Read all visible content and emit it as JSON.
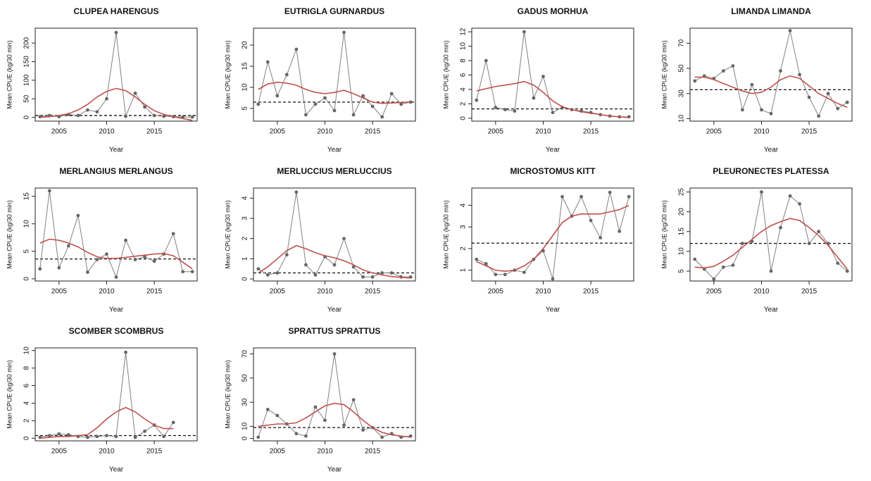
{
  "chart_data": [
    {
      "type": "line",
      "title": "CLUPEA HARENGUS",
      "xlabel": "Year",
      "ylabel": "Mean CPUE (kg/30 min)",
      "x": [
        2003,
        2004,
        2005,
        2006,
        2007,
        2008,
        2009,
        2010,
        2011,
        2012,
        2013,
        2014,
        2015,
        2016,
        2017,
        2018,
        2019
      ],
      "xlim": [
        2002.5,
        2019.5
      ],
      "xticks": [
        2005,
        2010,
        2015
      ],
      "ylim": [
        -10,
        240
      ],
      "yticks": [
        0,
        50,
        100,
        150,
        200
      ],
      "series": [
        {
          "color": "#808080",
          "markers": true,
          "values": [
            2,
            5,
            2,
            8,
            5,
            20,
            15,
            50,
            228,
            3,
            65,
            28,
            5,
            3,
            2,
            1,
            1
          ]
        },
        {
          "color": "#c0504d",
          "markers": false,
          "values": [
            0,
            2,
            5,
            10,
            20,
            35,
            55,
            70,
            78,
            72,
            55,
            35,
            18,
            8,
            2,
            -3,
            -8
          ]
        }
      ],
      "hline": 5
    },
    {
      "type": "line",
      "title": "EUTRIGLA GURNARDUS",
      "xlabel": "Year",
      "ylabel": "Mean CPUE (kg/30 min)",
      "x": [
        2003,
        2004,
        2005,
        2006,
        2007,
        2008,
        2009,
        2010,
        2011,
        2012,
        2013,
        2014,
        2015,
        2016,
        2017,
        2018,
        2019
      ],
      "xlim": [
        2002.5,
        2019.5
      ],
      "xticks": [
        2005,
        2010,
        2015
      ],
      "ylim": [
        2,
        24
      ],
      "yticks": [
        5,
        10,
        15,
        20
      ],
      "series": [
        {
          "color": "#808080",
          "markers": true,
          "values": [
            6,
            16,
            8,
            13,
            19,
            3.5,
            6,
            7.5,
            4.5,
            23,
            3.5,
            8,
            5.5,
            3,
            8.5,
            6,
            6.5
          ]
        },
        {
          "color": "#c0504d",
          "markers": false,
          "values": [
            9.5,
            10.8,
            11.2,
            11,
            10.5,
            9.5,
            8.8,
            8.5,
            8.8,
            9.3,
            8.5,
            7.5,
            6.5,
            6.2,
            6.3,
            6.4,
            6.5
          ]
        }
      ],
      "hline": 6.5
    },
    {
      "type": "line",
      "title": "GADUS MORHUA",
      "xlabel": "Year",
      "ylabel": "Mean CPUE (kg/30 min)",
      "x": [
        2003,
        2004,
        2005,
        2006,
        2007,
        2008,
        2009,
        2010,
        2011,
        2012,
        2013,
        2014,
        2015,
        2016,
        2017,
        2018,
        2019
      ],
      "xlim": [
        2002.5,
        2019.5
      ],
      "xticks": [
        2005,
        2010,
        2015
      ],
      "ylim": [
        -0.4,
        12.5
      ],
      "yticks": [
        0,
        2,
        4,
        6,
        8,
        10,
        12
      ],
      "series": [
        {
          "color": "#808080",
          "markers": true,
          "values": [
            2.5,
            8,
            1.5,
            1.2,
            1,
            12,
            2.8,
            5.8,
            0.8,
            1.5,
            1.2,
            1,
            0.8,
            0.5,
            0.3,
            0.2,
            0.2
          ]
        },
        {
          "color": "#c0504d",
          "markers": false,
          "values": [
            3.8,
            4.1,
            4.4,
            4.6,
            4.8,
            5.1,
            4.6,
            3.6,
            2.4,
            1.6,
            1.2,
            0.9,
            0.7,
            0.5,
            0.3,
            0.2,
            0.1
          ]
        }
      ],
      "hline": 1.3
    },
    {
      "type": "line",
      "title": "LIMANDA LIMANDA",
      "xlabel": "Year",
      "ylabel": "Mean CPUE (kg/30 min)",
      "x": [
        2003,
        2004,
        2005,
        2006,
        2007,
        2008,
        2009,
        2010,
        2011,
        2012,
        2013,
        2014,
        2015,
        2016,
        2017,
        2018,
        2019
      ],
      "xlim": [
        2002.5,
        2019.5
      ],
      "xticks": [
        2005,
        2010,
        2015
      ],
      "ylim": [
        8,
        82
      ],
      "yticks": [
        10,
        30,
        50,
        70
      ],
      "series": [
        {
          "color": "#808080",
          "markers": true,
          "values": [
            40,
            44,
            42,
            48,
            52,
            17,
            37,
            17,
            14,
            48,
            80,
            45,
            27,
            12,
            30,
            18,
            23
          ]
        },
        {
          "color": "#c0504d",
          "markers": false,
          "values": [
            43,
            43,
            41,
            38,
            35,
            32,
            30,
            31,
            35,
            41,
            44,
            42,
            36,
            30,
            26,
            22,
            19
          ]
        }
      ],
      "hline": 33
    },
    {
      "type": "line",
      "title": "MERLANGIUS MERLANGUS",
      "xlabel": "Year",
      "ylabel": "Mean CPUE (kg/30 min)",
      "x": [
        2003,
        2004,
        2005,
        2006,
        2007,
        2008,
        2009,
        2010,
        2011,
        2012,
        2013,
        2014,
        2015,
        2016,
        2017,
        2018,
        2019
      ],
      "xlim": [
        2002.5,
        2019.5
      ],
      "xticks": [
        2005,
        2010,
        2015
      ],
      "ylim": [
        -0.4,
        16.5
      ],
      "yticks": [
        0,
        5,
        10,
        15
      ],
      "series": [
        {
          "color": "#808080",
          "markers": true,
          "values": [
            1.8,
            16,
            2,
            6,
            11.5,
            1.2,
            3.5,
            4.5,
            0.3,
            7,
            3.5,
            4,
            3.2,
            4.5,
            8.2,
            1.3,
            1.3
          ]
        },
        {
          "color": "#c0504d",
          "markers": false,
          "values": [
            6.5,
            7.2,
            7,
            6.5,
            5.8,
            4.8,
            4,
            3.7,
            3.7,
            3.9,
            4.1,
            4.3,
            4.5,
            4.6,
            4.2,
            3,
            1.8
          ]
        }
      ],
      "hline": 3.6
    },
    {
      "type": "line",
      "title": "MERLUCCIUS MERLUCCIUS",
      "xlabel": "Year",
      "ylabel": "Mean CPUE (kg/30 min)",
      "x": [
        2003,
        2004,
        2005,
        2006,
        2007,
        2008,
        2009,
        2010,
        2011,
        2012,
        2013,
        2014,
        2015,
        2016,
        2017,
        2018,
        2019
      ],
      "xlim": [
        2002.5,
        2019.5
      ],
      "xticks": [
        2005,
        2010,
        2015
      ],
      "ylim": [
        -0.1,
        4.5
      ],
      "yticks": [
        0,
        1,
        2,
        3,
        4
      ],
      "series": [
        {
          "color": "#808080",
          "markers": true,
          "values": [
            0.5,
            0.2,
            0.3,
            1.2,
            4.3,
            0.7,
            0.2,
            1.1,
            0.7,
            2,
            0.6,
            0.1,
            0.1,
            0.3,
            0.3,
            0.1,
            0.1
          ]
        },
        {
          "color": "#c0504d",
          "markers": false,
          "values": [
            0.3,
            0.6,
            1,
            1.4,
            1.65,
            1.5,
            1.3,
            1.15,
            1.05,
            0.9,
            0.7,
            0.45,
            0.3,
            0.2,
            0.12,
            0.08,
            0.05
          ]
        }
      ],
      "hline": 0.3
    },
    {
      "type": "line",
      "title": "MICROSTOMUS KITT",
      "xlabel": "Year",
      "ylabel": "Mean CPUE (kg/30 min)",
      "x": [
        2003,
        2004,
        2005,
        2006,
        2007,
        2008,
        2009,
        2010,
        2011,
        2012,
        2013,
        2014,
        2015,
        2016,
        2017,
        2018,
        2019
      ],
      "xlim": [
        2002.5,
        2019.5
      ],
      "xticks": [
        2005,
        2010,
        2015
      ],
      "ylim": [
        0.5,
        4.8
      ],
      "yticks": [
        1,
        2,
        3,
        4
      ],
      "series": [
        {
          "color": "#808080",
          "markers": true,
          "values": [
            1.5,
            1.3,
            0.8,
            0.8,
            1,
            0.9,
            1.5,
            1.9,
            0.6,
            4.4,
            3.5,
            4.4,
            3.3,
            2.5,
            4.6,
            2.8,
            4.4
          ]
        },
        {
          "color": "#c0504d",
          "markers": false,
          "values": [
            1.4,
            1.2,
            1,
            0.95,
            1,
            1.2,
            1.5,
            2,
            2.6,
            3.2,
            3.5,
            3.6,
            3.6,
            3.6,
            3.7,
            3.8,
            4
          ]
        }
      ],
      "hline": 2.25
    },
    {
      "type": "line",
      "title": "PLEURONECTES PLATESSA",
      "xlabel": "Year",
      "ylabel": "Mean CPUE (kg/30 min)",
      "x": [
        2003,
        2004,
        2005,
        2006,
        2007,
        2008,
        2009,
        2010,
        2011,
        2012,
        2013,
        2014,
        2015,
        2016,
        2017,
        2018,
        2019
      ],
      "xlim": [
        2002.5,
        2019.5
      ],
      "xticks": [
        2005,
        2010,
        2015
      ],
      "ylim": [
        2.5,
        26
      ],
      "yticks": [
        5,
        10,
        15,
        20,
        25
      ],
      "series": [
        {
          "color": "#808080",
          "markers": true,
          "values": [
            8,
            5.5,
            3,
            6,
            6.5,
            12,
            12.5,
            25,
            5,
            16,
            24,
            22,
            12,
            15,
            12,
            7,
            5
          ]
        },
        {
          "color": "#c0504d",
          "markers": false,
          "values": [
            6,
            5.8,
            6.2,
            7.5,
            9,
            11,
            13,
            15,
            16.5,
            17.5,
            18.3,
            17.8,
            16,
            14,
            11.5,
            8.5,
            5.5
          ]
        }
      ],
      "hline": 12
    },
    {
      "type": "line",
      "title": "SCOMBER SCOMBRUS",
      "xlabel": "Year",
      "ylabel": "Mean CPUE (kg/30 min)",
      "x": [
        2003,
        2004,
        2005,
        2006,
        2007,
        2008,
        2009,
        2010,
        2011,
        2012,
        2013,
        2014,
        2015,
        2016,
        2017,
        2018,
        2019
      ],
      "xlim": [
        2002.5,
        2019.5
      ],
      "xticks": [
        2005,
        2010,
        2015
      ],
      "ylim": [
        -0.3,
        10.3
      ],
      "yticks": [
        0,
        2,
        4,
        6,
        8,
        10
      ],
      "series": [
        {
          "color": "#808080",
          "markers": true,
          "values": [
            0.1,
            0.3,
            0.5,
            0.4,
            0.2,
            0.1,
            0.2,
            0.3,
            0.2,
            9.8,
            0.1,
            0.8,
            1.5,
            0.2,
            1.8,
            null,
            null
          ]
        },
        {
          "color": "#c0504d",
          "markers": false,
          "values": [
            0,
            0.1,
            0.2,
            0.2,
            0.3,
            0.4,
            1.2,
            2.2,
            3,
            3.5,
            3,
            2.2,
            1.5,
            1.1,
            1.1,
            null,
            null
          ]
        }
      ],
      "hline": 0.3
    },
    {
      "type": "line",
      "title": "SPRATTUS SPRATTUS",
      "xlabel": "Year",
      "ylabel": "Mean CPUE (kg/30 min)",
      "x": [
        2003,
        2004,
        2005,
        2006,
        2007,
        2008,
        2009,
        2010,
        2011,
        2012,
        2013,
        2014,
        2015,
        2016,
        2017,
        2018,
        2019
      ],
      "xlim": [
        2002.5,
        2019.5
      ],
      "xticks": [
        2005,
        2010,
        2015
      ],
      "ylim": [
        -2,
        75
      ],
      "yticks": [
        0,
        10,
        30,
        50,
        70
      ],
      "series": [
        {
          "color": "#808080",
          "markers": true,
          "values": [
            1,
            24,
            19,
            12,
            4,
            2,
            26,
            15,
            70,
            11,
            32,
            7,
            9,
            1,
            4,
            1,
            2
          ]
        },
        {
          "color": "#c0504d",
          "markers": false,
          "values": [
            10,
            11,
            12,
            12,
            13,
            17,
            22,
            27,
            29,
            28,
            22,
            15,
            9,
            5,
            3,
            2,
            1
          ]
        }
      ],
      "hline": 9
    }
  ]
}
